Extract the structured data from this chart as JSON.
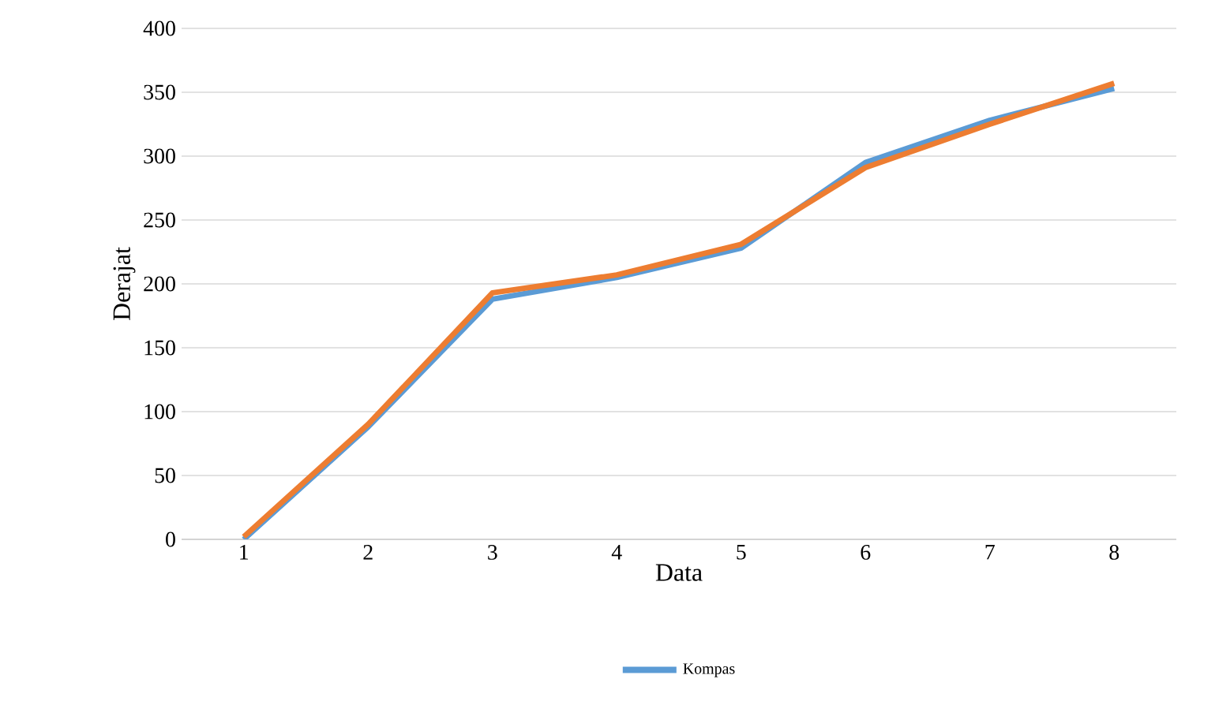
{
  "chart_data": {
    "type": "line",
    "xlabel": "Data",
    "ylabel": "Derajat",
    "categories": [
      "1",
      "2",
      "3",
      "4",
      "5",
      "6",
      "7",
      "8"
    ],
    "series": [
      {
        "name": "Kompas",
        "color": "#5b9bd5",
        "values": [
          0,
          88,
          188,
          205,
          228,
          295,
          328,
          353
        ]
      },
      {
        "color": "#ed7d31",
        "values": [
          2,
          90,
          193,
          207,
          231,
          291,
          325,
          357
        ]
      }
    ],
    "ylim": [
      0,
      400
    ],
    "yticks": [
      0,
      50,
      100,
      150,
      200,
      250,
      300,
      350,
      400
    ],
    "grid": "y",
    "legend": "bottom",
    "marker": "none",
    "line_style": "solid"
  }
}
